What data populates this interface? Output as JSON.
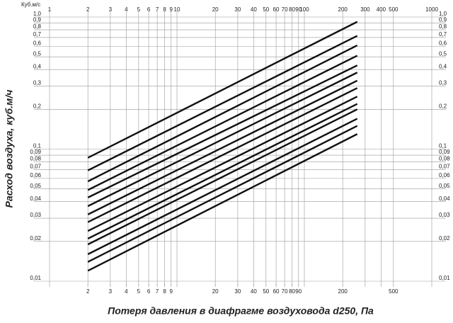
{
  "chart_data": {
    "type": "line",
    "unit_label": "Куб.м/с",
    "x_label": "Потеря давления в диафрагме воздуховода d250, Па",
    "y_label": "Расход воздуха, куб.м/ч",
    "log_x": true,
    "log_y": true,
    "grid": true,
    "color": "#111",
    "xlim": [
      1,
      1000
    ],
    "ylim": [
      0.01,
      1
    ],
    "xticks_top": [
      1,
      2,
      3,
      4,
      5,
      6,
      7,
      8,
      9,
      10,
      20,
      30,
      40,
      50,
      60,
      70,
      80,
      90,
      100,
      200,
      300,
      400,
      500,
      1000
    ],
    "xticks": [
      2,
      3,
      4,
      5,
      6,
      7,
      8,
      9,
      20,
      30,
      40,
      50,
      60,
      70,
      80,
      90,
      200,
      500
    ],
    "yticks": [
      {
        "value": 1,
        "label": "1,0"
      },
      {
        "value": 0.9,
        "label": "0,9"
      },
      {
        "value": 0.8,
        "label": "0,8"
      },
      {
        "value": 0.7,
        "label": "0,7"
      },
      {
        "value": 0.6,
        "label": "0,6"
      },
      {
        "value": 0.5,
        "label": "0,5"
      },
      {
        "value": 0.4,
        "label": "0,4"
      },
      {
        "value": 0.3,
        "label": "0,3"
      },
      {
        "value": 0.2,
        "label": "0,2"
      },
      {
        "value": 0.1,
        "label": "0,1"
      },
      {
        "value": 0.09,
        "label": "0,09"
      },
      {
        "value": 0.08,
        "label": "0,08"
      },
      {
        "value": 0.07,
        "label": "0,07"
      },
      {
        "value": 0.06,
        "label": "0,06"
      },
      {
        "value": 0.05,
        "label": "0,05"
      },
      {
        "value": 0.04,
        "label": "0,04"
      },
      {
        "value": 0.03,
        "label": "0,03"
      },
      {
        "value": 0.02,
        "label": "0,02"
      },
      {
        "value": 0.01,
        "label": "0,01"
      }
    ],
    "x": [
      2,
      260
    ],
    "series": [
      {
        "values": [
          0.086,
          0.92
        ]
      },
      {
        "values": [
          0.069,
          0.72
        ]
      },
      {
        "values": [
          0.057,
          0.61
        ]
      },
      {
        "values": [
          0.049,
          0.51
        ]
      },
      {
        "values": [
          0.043,
          0.43
        ]
      },
      {
        "values": [
          0.037,
          0.38
        ]
      },
      {
        "values": [
          0.032,
          0.33
        ]
      },
      {
        "values": [
          0.028,
          0.29
        ]
      },
      {
        "values": [
          0.024,
          0.25
        ]
      },
      {
        "values": [
          0.021,
          0.22
        ]
      },
      {
        "values": [
          0.019,
          0.2
        ]
      },
      {
        "values": [
          0.016,
          0.17
        ]
      },
      {
        "values": [
          0.014,
          0.15
        ]
      },
      {
        "values": [
          0.012,
          0.13
        ]
      }
    ]
  }
}
